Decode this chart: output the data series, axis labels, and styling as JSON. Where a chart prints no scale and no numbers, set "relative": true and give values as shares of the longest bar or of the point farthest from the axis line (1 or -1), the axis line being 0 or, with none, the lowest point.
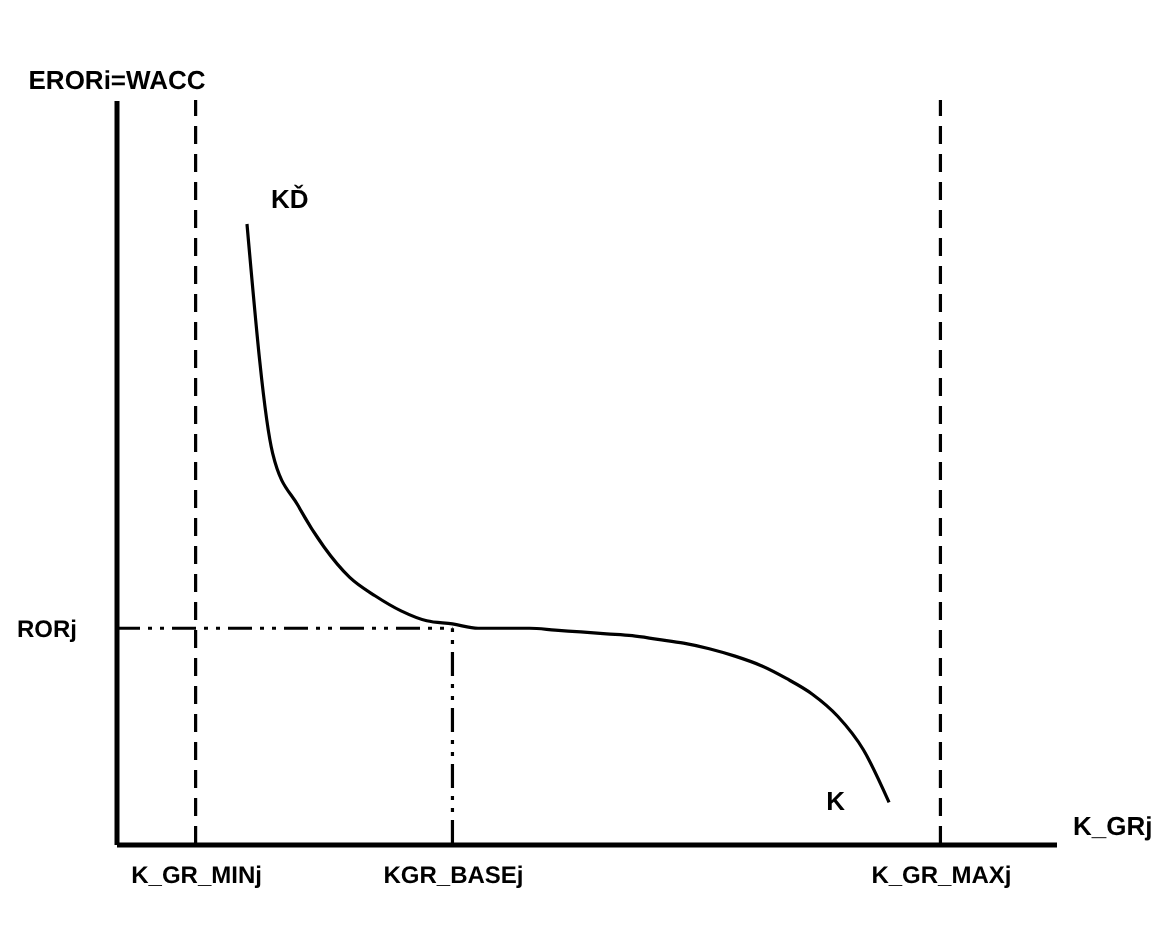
{
  "chart_data": {
    "type": "line",
    "relative": true,
    "xlabel": "K_GRj",
    "ylabel": "ERORi=WACC",
    "categories": [
      "K_GR_MINj",
      null,
      null,
      null,
      null,
      null,
      null,
      null,
      null,
      null,
      "KGR_BASEj",
      null,
      null,
      null,
      null,
      null,
      null,
      null,
      null,
      null,
      null,
      null,
      null,
      null,
      null,
      null,
      null,
      null,
      null,
      "K_GR_MAXj"
    ],
    "series": [
      {
        "color": "#000000",
        "values": [
          null,
          null,
          1.0,
          0.63,
          0.545,
          0.479,
          0.43,
          0.4,
          0.376,
          0.36,
          0.355,
          0.348,
          0.348,
          0.348,
          0.345,
          0.342,
          0.339,
          0.336,
          0.33,
          0.324,
          0.315,
          0.303,
          0.288,
          0.267,
          0.242,
          0.206,
          0.152,
          0.067,
          null,
          null
        ]
      }
    ],
    "ref_lines": [
      {
        "axis": "x",
        "value": "K_GR_MINj",
        "line_style": "dashed"
      },
      {
        "axis": "x",
        "value": "K_GR_MAXj",
        "line_style": "dashed"
      },
      {
        "axis": "x",
        "value": "KGR_BASEj",
        "line_style": "dashdot"
      },
      {
        "axis": "y",
        "value": 0.348,
        "label": "RORj",
        "line_style": "dashdot"
      }
    ],
    "annotations": [
      "KĎ",
      "K"
    ],
    "grid": false,
    "marker": "none",
    "line_style": "solid"
  }
}
